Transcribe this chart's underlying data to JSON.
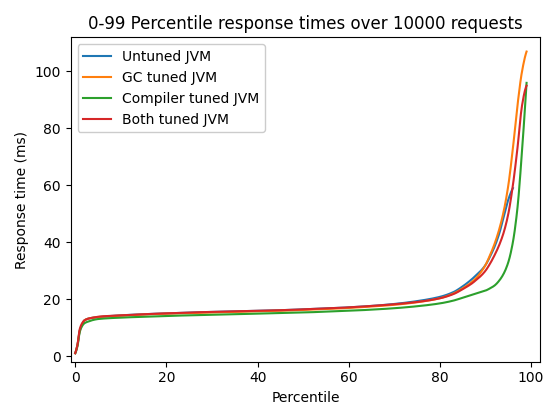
{
  "title": "0-99 Percentile response times over 10000 requests",
  "xlabel": "Percentile",
  "ylabel": "Response time (ms)",
  "xlim": [
    -1,
    102
  ],
  "ylim": [
    -2,
    112
  ],
  "figsize": [
    5.6,
    4.2
  ],
  "dpi": 100,
  "series": [
    {
      "label": "Untuned JVM",
      "color": "#1f77b4",
      "key_points": [
        [
          0,
          1
        ],
        [
          0.5,
          4
        ],
        [
          1,
          9
        ],
        [
          1.5,
          11
        ],
        [
          2,
          12.5
        ],
        [
          3,
          13.2
        ],
        [
          4,
          13.5
        ],
        [
          5,
          13.7
        ],
        [
          10,
          14.3
        ],
        [
          15,
          14.7
        ],
        [
          20,
          15.0
        ],
        [
          25,
          15.3
        ],
        [
          30,
          15.5
        ],
        [
          35,
          15.7
        ],
        [
          40,
          15.9
        ],
        [
          45,
          16.1
        ],
        [
          50,
          16.4
        ],
        [
          55,
          16.7
        ],
        [
          60,
          17.1
        ],
        [
          65,
          17.6
        ],
        [
          70,
          18.3
        ],
        [
          75,
          19.3
        ],
        [
          80,
          20.8
        ],
        [
          83,
          22.5
        ],
        [
          85,
          24.5
        ],
        [
          87,
          27.0
        ],
        [
          88,
          28.5
        ],
        [
          89,
          30.0
        ],
        [
          90,
          32.0
        ],
        [
          91,
          35.0
        ],
        [
          92,
          38.5
        ],
        [
          93,
          43.0
        ],
        [
          94,
          49.0
        ],
        [
          95,
          55.0
        ],
        [
          96,
          59.0
        ]
      ]
    },
    {
      "label": "GC tuned JVM",
      "color": "#ff7f0e",
      "key_points": [
        [
          0,
          1
        ],
        [
          0.5,
          4
        ],
        [
          1,
          9
        ],
        [
          1.5,
          11
        ],
        [
          2,
          12.5
        ],
        [
          3,
          13.2
        ],
        [
          4,
          13.5
        ],
        [
          5,
          13.7
        ],
        [
          10,
          14.2
        ],
        [
          15,
          14.6
        ],
        [
          20,
          14.9
        ],
        [
          25,
          15.1
        ],
        [
          30,
          15.3
        ],
        [
          35,
          15.5
        ],
        [
          40,
          15.7
        ],
        [
          45,
          15.9
        ],
        [
          50,
          16.2
        ],
        [
          55,
          16.5
        ],
        [
          60,
          16.9
        ],
        [
          65,
          17.4
        ],
        [
          70,
          18.0
        ],
        [
          75,
          18.9
        ],
        [
          80,
          20.3
        ],
        [
          83,
          22.0
        ],
        [
          85,
          23.8
        ],
        [
          87,
          26.0
        ],
        [
          88,
          27.5
        ],
        [
          89,
          29.5
        ],
        [
          90,
          32.0
        ],
        [
          91,
          35.5
        ],
        [
          92,
          39.5
        ],
        [
          93,
          44.5
        ],
        [
          94,
          51.0
        ],
        [
          95,
          60.0
        ],
        [
          96,
          73.0
        ],
        [
          97,
          88.0
        ],
        [
          98,
          100.0
        ],
        [
          99,
          107.0
        ]
      ]
    },
    {
      "label": "Compiler tuned JVM",
      "color": "#2ca02c",
      "key_points": [
        [
          0,
          1
        ],
        [
          0.5,
          3.5
        ],
        [
          1,
          8.5
        ],
        [
          1.5,
          10.5
        ],
        [
          2,
          11.5
        ],
        [
          3,
          12.2
        ],
        [
          4,
          12.7
        ],
        [
          5,
          13.0
        ],
        [
          10,
          13.5
        ],
        [
          15,
          13.8
        ],
        [
          20,
          14.1
        ],
        [
          25,
          14.3
        ],
        [
          30,
          14.5
        ],
        [
          35,
          14.7
        ],
        [
          40,
          14.9
        ],
        [
          45,
          15.1
        ],
        [
          50,
          15.3
        ],
        [
          55,
          15.6
        ],
        [
          60,
          15.9
        ],
        [
          65,
          16.3
        ],
        [
          70,
          16.8
        ],
        [
          75,
          17.5
        ],
        [
          80,
          18.5
        ],
        [
          83,
          19.5
        ],
        [
          85,
          20.5
        ],
        [
          87,
          21.5
        ],
        [
          88,
          22.0
        ],
        [
          89,
          22.5
        ],
        [
          90,
          23.0
        ],
        [
          91,
          23.8
        ],
        [
          92,
          24.8
        ],
        [
          93,
          26.5
        ],
        [
          94,
          29.0
        ],
        [
          95,
          33.0
        ],
        [
          96,
          40.0
        ],
        [
          97,
          52.0
        ],
        [
          98,
          72.0
        ],
        [
          99,
          96.0
        ]
      ]
    },
    {
      "label": "Both tuned JVM",
      "color": "#d62728",
      "key_points": [
        [
          0,
          1
        ],
        [
          0.5,
          4
        ],
        [
          1,
          9.5
        ],
        [
          1.5,
          11.5
        ],
        [
          2,
          12.5
        ],
        [
          3,
          13.2
        ],
        [
          4,
          13.5
        ],
        [
          5,
          13.8
        ],
        [
          10,
          14.3
        ],
        [
          15,
          14.7
        ],
        [
          20,
          15.0
        ],
        [
          25,
          15.3
        ],
        [
          30,
          15.5
        ],
        [
          35,
          15.7
        ],
        [
          40,
          15.9
        ],
        [
          45,
          16.1
        ],
        [
          50,
          16.4
        ],
        [
          55,
          16.7
        ],
        [
          60,
          17.1
        ],
        [
          65,
          17.6
        ],
        [
          70,
          18.2
        ],
        [
          75,
          19.0
        ],
        [
          80,
          20.3
        ],
        [
          83,
          21.8
        ],
        [
          85,
          23.5
        ],
        [
          87,
          25.5
        ],
        [
          88,
          26.8
        ],
        [
          89,
          28.2
        ],
        [
          90,
          30.0
        ],
        [
          91,
          32.5
        ],
        [
          92,
          35.5
        ],
        [
          93,
          39.0
        ],
        [
          94,
          43.5
        ],
        [
          95,
          50.0
        ],
        [
          96,
          60.0
        ],
        [
          97,
          73.0
        ],
        [
          98,
          88.0
        ],
        [
          99,
          95.0
        ]
      ]
    }
  ],
  "xticks": [
    0,
    20,
    40,
    60,
    80,
    100
  ],
  "yticks": [
    0,
    20,
    40,
    60,
    80,
    100
  ]
}
